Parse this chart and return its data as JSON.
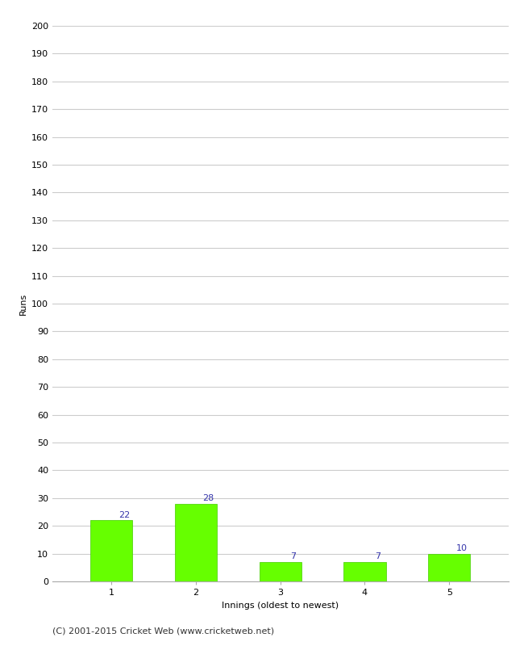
{
  "categories": [
    "1",
    "2",
    "3",
    "4",
    "5"
  ],
  "values": [
    22,
    28,
    7,
    7,
    10
  ],
  "bar_color": "#66ff00",
  "bar_edge_color": "#44cc00",
  "value_label_color": "#3333aa",
  "xlabel": "Innings (oldest to newest)",
  "ylabel": "Runs",
  "ylim": [
    0,
    200
  ],
  "yticks": [
    0,
    10,
    20,
    30,
    40,
    50,
    60,
    70,
    80,
    90,
    100,
    110,
    120,
    130,
    140,
    150,
    160,
    170,
    180,
    190,
    200
  ],
  "footer": "(C) 2001-2015 Cricket Web (www.cricketweb.net)",
  "background_color": "#ffffff",
  "grid_color": "#cccccc",
  "value_fontsize": 8,
  "axis_label_fontsize": 8,
  "tick_fontsize": 8,
  "footer_fontsize": 8
}
